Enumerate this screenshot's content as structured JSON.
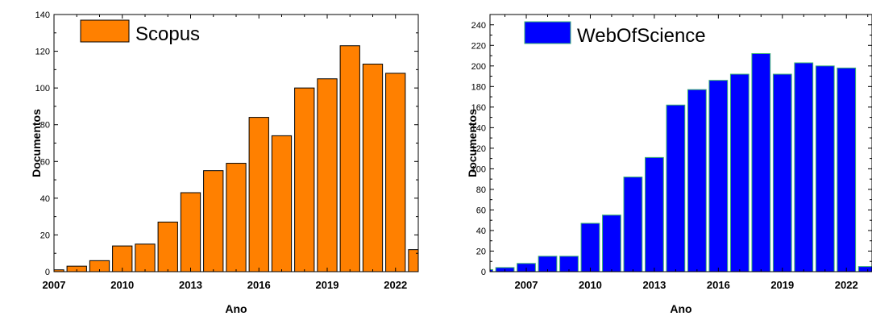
{
  "chart_data": [
    {
      "type": "bar",
      "xlabel": "Ano",
      "ylabel": "Documentos",
      "legend": {
        "label": "Scopus",
        "placement": "top-left"
      },
      "series": [
        {
          "name": "Scopus",
          "color": "#ff8000",
          "edge_color": "#000000",
          "x": [
            2007,
            2008,
            2009,
            2010,
            2011,
            2012,
            2013,
            2014,
            2015,
            2016,
            2017,
            2018,
            2019,
            2020,
            2021,
            2022,
            2023
          ],
          "values": [
            1,
            3,
            6,
            14,
            15,
            27,
            43,
            55,
            59,
            84,
            74,
            100,
            105,
            123,
            113,
            108,
            12
          ]
        }
      ],
      "xlim": [
        2007,
        2023
      ],
      "ylim": [
        0,
        140
      ],
      "xticks": [
        2007,
        2010,
        2013,
        2016,
        2019,
        2022
      ],
      "yticks": [
        0,
        20,
        40,
        60,
        80,
        100,
        120,
        140
      ],
      "grid": false
    },
    {
      "type": "bar",
      "xlabel": "Ano",
      "ylabel": "Documentos",
      "legend": {
        "label": "WebOfScience",
        "placement": "top-left"
      },
      "series": [
        {
          "name": "WebOfScience",
          "color": "#0000ff",
          "edge_color": "#3cb371",
          "x": [
            2005,
            2006,
            2007,
            2008,
            2009,
            2010,
            2011,
            2012,
            2013,
            2014,
            2015,
            2016,
            2017,
            2018,
            2019,
            2020,
            2021,
            2022,
            2023
          ],
          "values": [
            2,
            4,
            8,
            15,
            15,
            47,
            55,
            92,
            111,
            162,
            177,
            186,
            192,
            212,
            192,
            203,
            200,
            198,
            5
          ]
        }
      ],
      "xlim": [
        2005.3,
        2023.2
      ],
      "ylim": [
        0,
        250
      ],
      "xticks": [
        2007,
        2010,
        2013,
        2016,
        2019,
        2022
      ],
      "yticks": [
        0,
        20,
        40,
        60,
        80,
        100,
        120,
        140,
        160,
        180,
        200,
        220,
        240
      ],
      "grid": false
    }
  ]
}
